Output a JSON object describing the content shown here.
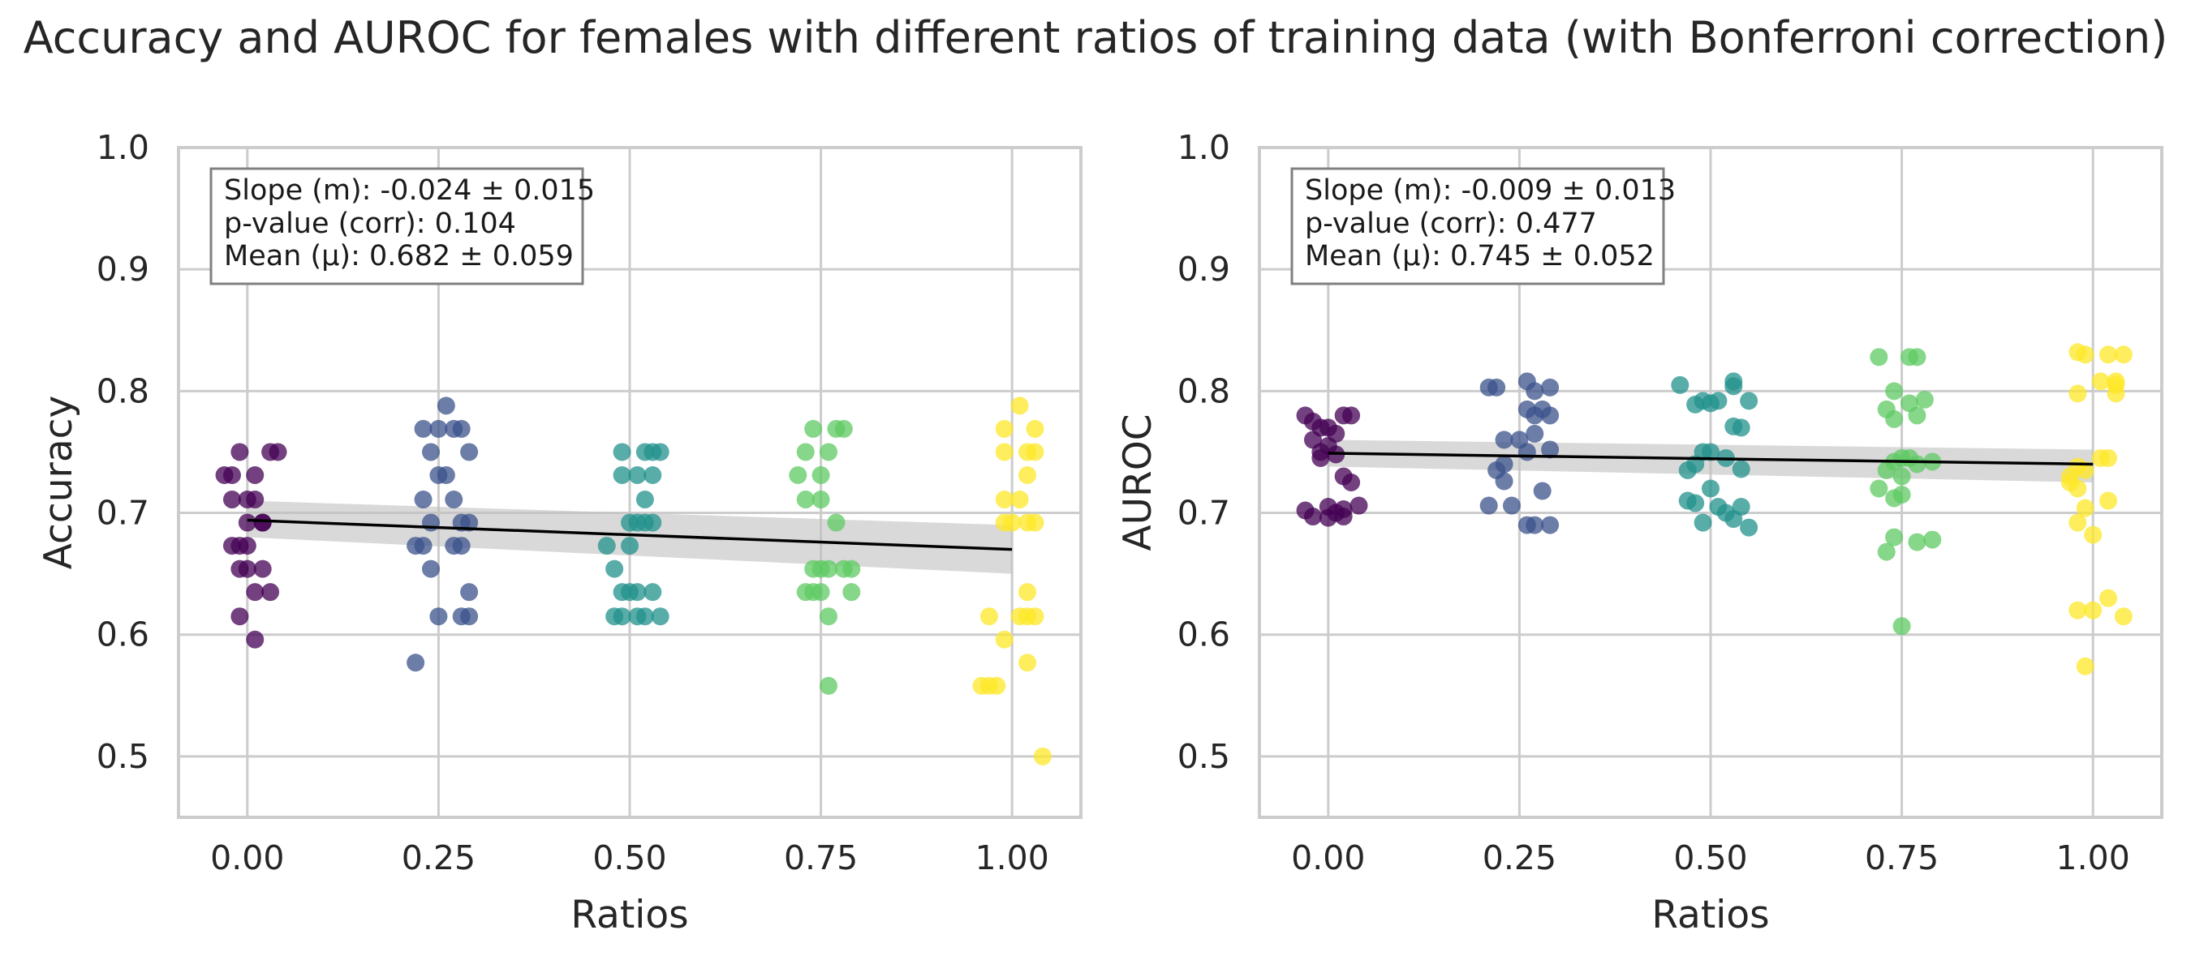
{
  "figure_title": "Accuracy and AUROC for females with different ratios of training data (with Bonferroni correction)",
  "colors": {
    "0.0": "#440154",
    "0.25": "#3b528b",
    "0.5": "#21918c",
    "0.75": "#5ec962",
    "1.0": "#fde725",
    "regression_line": "#000000",
    "confidence_band": "#bfbfbf",
    "grid": "#cccccc"
  },
  "chart_data": [
    {
      "type": "scatter",
      "title": "",
      "xlabel": "Ratios",
      "ylabel": "Accuracy",
      "xlim": [
        -0.09,
        1.09
      ],
      "ylim": [
        0.45,
        1.0
      ],
      "xticks": [
        "0.00",
        "0.25",
        "0.50",
        "0.75",
        "1.00"
      ],
      "yticks": [
        "0.5",
        "0.6",
        "0.7",
        "0.8",
        "0.9",
        "1.0"
      ],
      "grid": true,
      "stats": [
        "Slope (m): -0.024 ± 0.015",
        "p-value (corr): 0.104",
        "Mean (μ): 0.682 ± 0.059"
      ],
      "stats_placement": "top-left",
      "regression": {
        "x": [
          0.0,
          1.0
        ],
        "y": [
          0.694,
          0.67
        ],
        "band_lower": [
          0.68,
          0.65
        ],
        "band_upper": [
          0.71,
          0.69
        ]
      },
      "groups": [
        {
          "ratio": 0.0,
          "points": [
            [
              -0.03,
              0.731
            ],
            [
              -0.02,
              0.711
            ],
            [
              0.01,
              0.731
            ],
            [
              -0.01,
              0.75
            ],
            [
              0.03,
              0.75
            ],
            [
              0.04,
              0.75
            ],
            [
              0.0,
              0.711
            ],
            [
              0.01,
              0.711
            ],
            [
              0.0,
              0.692
            ],
            [
              0.02,
              0.692
            ],
            [
              -0.01,
              0.673
            ],
            [
              0.0,
              0.673
            ],
            [
              -0.02,
              0.673
            ],
            [
              0.02,
              0.654
            ],
            [
              0.0,
              0.654
            ],
            [
              -0.01,
              0.654
            ],
            [
              0.01,
              0.635
            ],
            [
              0.03,
              0.635
            ],
            [
              -0.01,
              0.615
            ],
            [
              0.01,
              0.596
            ],
            [
              0.02,
              0.692
            ],
            [
              -0.02,
              0.731
            ]
          ]
        },
        {
          "ratio": 0.25,
          "points": [
            [
              0.22,
              0.577
            ],
            [
              0.23,
              0.769
            ],
            [
              0.26,
              0.788
            ],
            [
              0.25,
              0.769
            ],
            [
              0.27,
              0.769
            ],
            [
              0.28,
              0.769
            ],
            [
              0.24,
              0.75
            ],
            [
              0.29,
              0.75
            ],
            [
              0.25,
              0.731
            ],
            [
              0.26,
              0.731
            ],
            [
              0.23,
              0.711
            ],
            [
              0.27,
              0.711
            ],
            [
              0.24,
              0.692
            ],
            [
              0.28,
              0.692
            ],
            [
              0.29,
              0.692
            ],
            [
              0.22,
              0.673
            ],
            [
              0.23,
              0.673
            ],
            [
              0.27,
              0.673
            ],
            [
              0.28,
              0.673
            ],
            [
              0.24,
              0.654
            ],
            [
              0.29,
              0.635
            ],
            [
              0.25,
              0.615
            ],
            [
              0.28,
              0.615
            ],
            [
              0.29,
              0.615
            ]
          ]
        },
        {
          "ratio": 0.5,
          "points": [
            [
              0.49,
              0.75
            ],
            [
              0.52,
              0.75
            ],
            [
              0.53,
              0.75
            ],
            [
              0.54,
              0.75
            ],
            [
              0.49,
              0.731
            ],
            [
              0.51,
              0.731
            ],
            [
              0.53,
              0.731
            ],
            [
              0.52,
              0.711
            ],
            [
              0.5,
              0.692
            ],
            [
              0.51,
              0.692
            ],
            [
              0.52,
              0.692
            ],
            [
              0.53,
              0.692
            ],
            [
              0.47,
              0.673
            ],
            [
              0.5,
              0.673
            ],
            [
              0.48,
              0.654
            ],
            [
              0.49,
              0.635
            ],
            [
              0.5,
              0.635
            ],
            [
              0.51,
              0.635
            ],
            [
              0.53,
              0.635
            ],
            [
              0.48,
              0.615
            ],
            [
              0.49,
              0.615
            ],
            [
              0.51,
              0.615
            ],
            [
              0.52,
              0.615
            ],
            [
              0.54,
              0.615
            ]
          ]
        },
        {
          "ratio": 0.75,
          "points": [
            [
              0.74,
              0.769
            ],
            [
              0.77,
              0.769
            ],
            [
              0.78,
              0.769
            ],
            [
              0.73,
              0.75
            ],
            [
              0.76,
              0.75
            ],
            [
              0.72,
              0.731
            ],
            [
              0.75,
              0.731
            ],
            [
              0.73,
              0.711
            ],
            [
              0.75,
              0.711
            ],
            [
              0.77,
              0.692
            ],
            [
              0.74,
              0.654
            ],
            [
              0.75,
              0.654
            ],
            [
              0.76,
              0.654
            ],
            [
              0.78,
              0.654
            ],
            [
              0.79,
              0.654
            ],
            [
              0.73,
              0.635
            ],
            [
              0.74,
              0.635
            ],
            [
              0.75,
              0.635
            ],
            [
              0.79,
              0.635
            ],
            [
              0.76,
              0.615
            ],
            [
              0.76,
              0.558
            ]
          ]
        },
        {
          "ratio": 1.0,
          "points": [
            [
              1.01,
              0.788
            ],
            [
              0.99,
              0.769
            ],
            [
              1.03,
              0.769
            ],
            [
              0.99,
              0.75
            ],
            [
              1.02,
              0.75
            ],
            [
              1.03,
              0.75
            ],
            [
              1.02,
              0.731
            ],
            [
              0.99,
              0.711
            ],
            [
              1.01,
              0.711
            ],
            [
              0.99,
              0.692
            ],
            [
              1.0,
              0.692
            ],
            [
              1.02,
              0.692
            ],
            [
              1.03,
              0.692
            ],
            [
              1.02,
              0.635
            ],
            [
              0.97,
              0.615
            ],
            [
              1.01,
              0.615
            ],
            [
              1.02,
              0.615
            ],
            [
              1.03,
              0.615
            ],
            [
              0.99,
              0.596
            ],
            [
              1.02,
              0.577
            ],
            [
              0.96,
              0.558
            ],
            [
              0.97,
              0.558
            ],
            [
              0.98,
              0.558
            ],
            [
              1.04,
              0.5
            ]
          ]
        }
      ]
    },
    {
      "type": "scatter",
      "title": "",
      "xlabel": "Ratios",
      "ylabel": "AUROC",
      "xlim": [
        -0.09,
        1.09
      ],
      "ylim": [
        0.45,
        1.0
      ],
      "xticks": [
        "0.00",
        "0.25",
        "0.50",
        "0.75",
        "1.00"
      ],
      "yticks": [
        "0.5",
        "0.6",
        "0.7",
        "0.8",
        "0.9",
        "1.0"
      ],
      "grid": true,
      "stats": [
        "Slope (m): -0.009 ± 0.013",
        "p-value (corr): 0.477",
        "Mean (μ): 0.745 ± 0.052"
      ],
      "stats_placement": "top-left",
      "regression": {
        "x": [
          0.0,
          1.0
        ],
        "y": [
          0.749,
          0.74
        ],
        "band_lower": [
          0.738,
          0.725
        ],
        "band_upper": [
          0.76,
          0.752
        ]
      },
      "groups": [
        {
          "ratio": 0.0,
          "points": [
            [
              -0.03,
              0.78
            ],
            [
              -0.02,
              0.775
            ],
            [
              -0.01,
              0.77
            ],
            [
              0.0,
              0.77
            ],
            [
              0.01,
              0.765
            ],
            [
              0.02,
              0.78
            ],
            [
              0.03,
              0.78
            ],
            [
              -0.02,
              0.76
            ],
            [
              -0.01,
              0.75
            ],
            [
              0.0,
              0.755
            ],
            [
              0.01,
              0.748
            ],
            [
              -0.01,
              0.745
            ],
            [
              0.02,
              0.73
            ],
            [
              0.03,
              0.725
            ],
            [
              -0.03,
              0.702
            ],
            [
              0.0,
              0.705
            ],
            [
              0.01,
              0.7
            ],
            [
              0.02,
              0.703
            ],
            [
              0.04,
              0.706
            ],
            [
              -0.02,
              0.697
            ],
            [
              0.02,
              0.697
            ],
            [
              0.0,
              0.696
            ]
          ]
        },
        {
          "ratio": 0.25,
          "points": [
            [
              0.21,
              0.803
            ],
            [
              0.22,
              0.803
            ],
            [
              0.26,
              0.808
            ],
            [
              0.27,
              0.8
            ],
            [
              0.29,
              0.803
            ],
            [
              0.23,
              0.76
            ],
            [
              0.26,
              0.785
            ],
            [
              0.28,
              0.785
            ],
            [
              0.27,
              0.78
            ],
            [
              0.29,
              0.78
            ],
            [
              0.25,
              0.76
            ],
            [
              0.27,
              0.765
            ],
            [
              0.23,
              0.74
            ],
            [
              0.22,
              0.735
            ],
            [
              0.26,
              0.75
            ],
            [
              0.29,
              0.752
            ],
            [
              0.23,
              0.726
            ],
            [
              0.28,
              0.718
            ],
            [
              0.21,
              0.706
            ],
            [
              0.24,
              0.706
            ],
            [
              0.26,
              0.69
            ],
            [
              0.27,
              0.69
            ],
            [
              0.29,
              0.69
            ]
          ]
        },
        {
          "ratio": 0.5,
          "points": [
            [
              0.46,
              0.805
            ],
            [
              0.53,
              0.808
            ],
            [
              0.53,
              0.804
            ],
            [
              0.49,
              0.792
            ],
            [
              0.5,
              0.79
            ],
            [
              0.51,
              0.792
            ],
            [
              0.48,
              0.789
            ],
            [
              0.55,
              0.792
            ],
            [
              0.53,
              0.771
            ],
            [
              0.54,
              0.77
            ],
            [
              0.49,
              0.75
            ],
            [
              0.5,
              0.75
            ],
            [
              0.52,
              0.745
            ],
            [
              0.47,
              0.735
            ],
            [
              0.48,
              0.74
            ],
            [
              0.54,
              0.736
            ],
            [
              0.5,
              0.72
            ],
            [
              0.47,
              0.71
            ],
            [
              0.48,
              0.708
            ],
            [
              0.51,
              0.705
            ],
            [
              0.54,
              0.705
            ],
            [
              0.52,
              0.7
            ],
            [
              0.53,
              0.695
            ],
            [
              0.49,
              0.692
            ],
            [
              0.55,
              0.688
            ]
          ]
        },
        {
          "ratio": 0.75,
          "points": [
            [
              0.72,
              0.828
            ],
            [
              0.76,
              0.828
            ],
            [
              0.77,
              0.828
            ],
            [
              0.74,
              0.8
            ],
            [
              0.76,
              0.79
            ],
            [
              0.78,
              0.793
            ],
            [
              0.73,
              0.785
            ],
            [
              0.74,
              0.777
            ],
            [
              0.77,
              0.78
            ],
            [
              0.75,
              0.745
            ],
            [
              0.76,
              0.745
            ],
            [
              0.74,
              0.742
            ],
            [
              0.77,
              0.74
            ],
            [
              0.79,
              0.742
            ],
            [
              0.73,
              0.735
            ],
            [
              0.75,
              0.73
            ],
            [
              0.72,
              0.72
            ],
            [
              0.74,
              0.712
            ],
            [
              0.75,
              0.715
            ],
            [
              0.74,
              0.68
            ],
            [
              0.77,
              0.676
            ],
            [
              0.79,
              0.678
            ],
            [
              0.73,
              0.668
            ],
            [
              0.75,
              0.607
            ]
          ]
        },
        {
          "ratio": 1.0,
          "points": [
            [
              0.98,
              0.832
            ],
            [
              0.99,
              0.83
            ],
            [
              1.02,
              0.83
            ],
            [
              1.04,
              0.83
            ],
            [
              1.01,
              0.808
            ],
            [
              1.03,
              0.808
            ],
            [
              1.03,
              0.805
            ],
            [
              0.98,
              0.798
            ],
            [
              1.03,
              0.798
            ],
            [
              1.01,
              0.745
            ],
            [
              1.02,
              0.745
            ],
            [
              0.98,
              0.738
            ],
            [
              0.97,
              0.73
            ],
            [
              0.99,
              0.735
            ],
            [
              0.97,
              0.725
            ],
            [
              0.98,
              0.72
            ],
            [
              0.99,
              0.704
            ],
            [
              1.02,
              0.71
            ],
            [
              0.98,
              0.692
            ],
            [
              1.0,
              0.682
            ],
            [
              1.02,
              0.63
            ],
            [
              0.98,
              0.62
            ],
            [
              1.0,
              0.62
            ],
            [
              1.04,
              0.615
            ],
            [
              0.99,
              0.574
            ]
          ]
        }
      ]
    }
  ]
}
